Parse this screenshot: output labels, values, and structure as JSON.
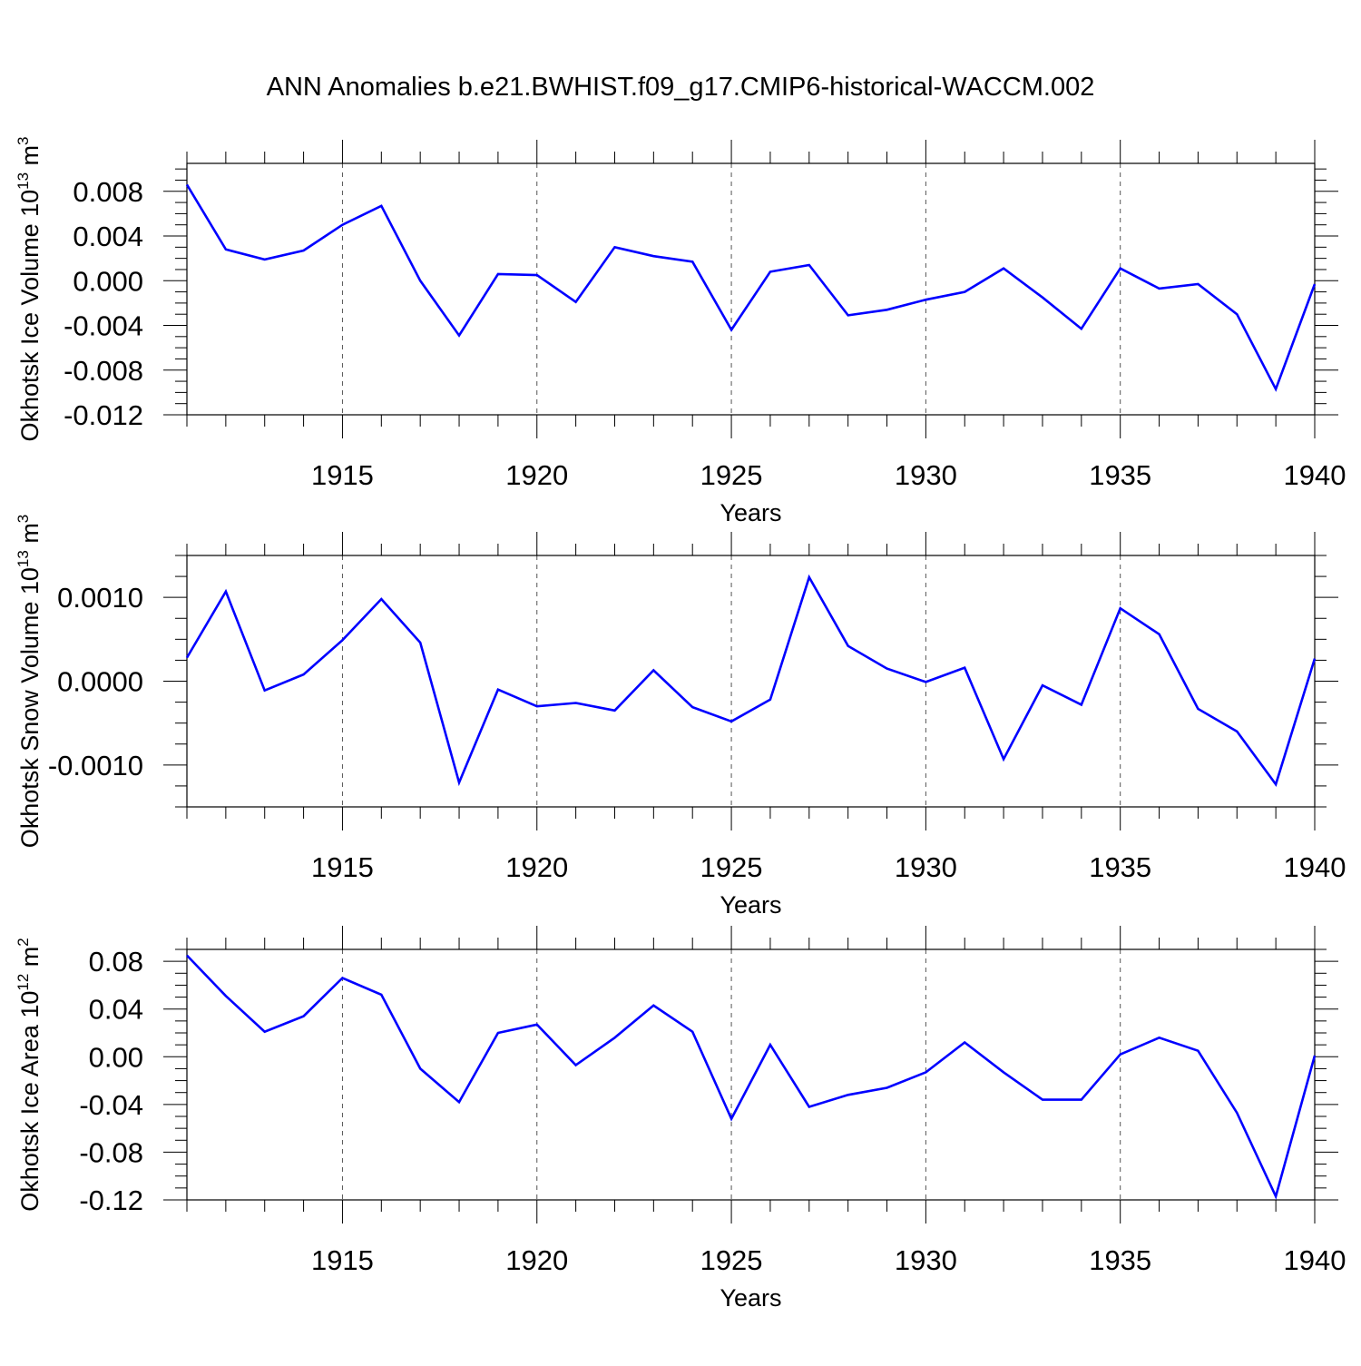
{
  "figure": {
    "title": "ANN Anomalies b.e21.BWHIST.f09_g17.CMIP6-historical-WACCM.002",
    "line_color": "#0000ff"
  },
  "chart_data": [
    {
      "type": "line",
      "ylabel_main": "Okhotsk Ice Volume 10",
      "ylabel_exp": "13",
      "ylabel_unit": " m",
      "ylabel_unit_exp": "3",
      "xlabel": "Years",
      "xlim": [
        1911,
        1940
      ],
      "ylim": [
        -0.012,
        0.0105
      ],
      "yticks": [
        0.008,
        0.004,
        0.0,
        -0.004,
        -0.008,
        -0.012
      ],
      "ytick_labels": [
        "0.008",
        "0.004",
        "0.000",
        "-0.004",
        "-0.008",
        "-0.012"
      ],
      "xticks": [
        1915,
        1920,
        1925,
        1930,
        1935,
        1940
      ],
      "xtick_labels": [
        "1915",
        "1920",
        "1925",
        "1930",
        "1935",
        "1940"
      ],
      "x": [
        1911,
        1912,
        1913,
        1914,
        1915,
        1916,
        1917,
        1918,
        1919,
        1920,
        1921,
        1922,
        1923,
        1924,
        1925,
        1926,
        1927,
        1928,
        1929,
        1930,
        1931,
        1932,
        1933,
        1934,
        1935,
        1936,
        1937,
        1938,
        1939,
        1940
      ],
      "y": [
        0.0086,
        0.0028,
        0.0019,
        0.0027,
        0.005,
        0.0067,
        0.0,
        -0.0049,
        0.0006,
        0.0005,
        -0.0019,
        0.003,
        0.0022,
        0.0017,
        -0.0044,
        0.0008,
        0.0014,
        -0.0031,
        -0.0026,
        -0.0017,
        -0.001,
        0.0011,
        -0.0015,
        -0.0043,
        0.0011,
        -0.0007,
        -0.0003,
        -0.003,
        -0.0097,
        -0.0003
      ]
    },
    {
      "type": "line",
      "ylabel_main": "Okhotsk Snow Volume 10",
      "ylabel_exp": "13",
      "ylabel_unit": " m",
      "ylabel_unit_exp": "3",
      "xlabel": "Years",
      "xlim": [
        1911,
        1940
      ],
      "ylim": [
        -0.0015,
        0.0015
      ],
      "yticks": [
        0.001,
        0.0,
        -0.001
      ],
      "ytick_labels": [
        "0.0010",
        "0.0000",
        "-0.0010"
      ],
      "xticks": [
        1915,
        1920,
        1925,
        1930,
        1935,
        1940
      ],
      "xtick_labels": [
        "1915",
        "1920",
        "1925",
        "1930",
        "1935",
        "1940"
      ],
      "x": [
        1911,
        1912,
        1913,
        1914,
        1915,
        1916,
        1917,
        1918,
        1919,
        1920,
        1921,
        1922,
        1923,
        1924,
        1925,
        1926,
        1927,
        1928,
        1929,
        1930,
        1931,
        1932,
        1933,
        1934,
        1935,
        1936,
        1937,
        1938,
        1939,
        1940
      ],
      "y": [
        0.00028,
        0.00107,
        -0.00011,
        8e-05,
        0.00049,
        0.00098,
        0.00046,
        -0.00121,
        -0.0001,
        -0.0003,
        -0.00026,
        -0.00035,
        0.00013,
        -0.00031,
        -0.00048,
        -0.00022,
        0.00124,
        0.00042,
        0.00015,
        -1e-05,
        0.00016,
        -0.00093,
        -5e-05,
        -0.00028,
        0.00087,
        0.00056,
        -0.00033,
        -0.0006,
        -0.00123,
        0.00027
      ]
    },
    {
      "type": "line",
      "ylabel_main": "Okhotsk Ice Area 10",
      "ylabel_exp": "12",
      "ylabel_unit": " m",
      "ylabel_unit_exp": "2",
      "xlabel": "Years",
      "xlim": [
        1911,
        1940
      ],
      "ylim": [
        -0.12,
        0.09
      ],
      "yticks": [
        0.08,
        0.04,
        0.0,
        -0.04,
        -0.08,
        -0.12
      ],
      "ytick_labels": [
        "0.08",
        "0.04",
        "0.00",
        "-0.04",
        "-0.08",
        "-0.12"
      ],
      "xticks": [
        1915,
        1920,
        1925,
        1930,
        1935,
        1940
      ],
      "xtick_labels": [
        "1915",
        "1920",
        "1925",
        "1930",
        "1935",
        "1940"
      ],
      "x": [
        1911,
        1912,
        1913,
        1914,
        1915,
        1916,
        1917,
        1918,
        1919,
        1920,
        1921,
        1922,
        1923,
        1924,
        1925,
        1926,
        1927,
        1928,
        1929,
        1930,
        1931,
        1932,
        1933,
        1934,
        1935,
        1936,
        1937,
        1938,
        1939,
        1940
      ],
      "y": [
        0.085,
        0.051,
        0.021,
        0.034,
        0.066,
        0.052,
        -0.01,
        -0.038,
        0.02,
        0.027,
        -0.007,
        0.016,
        0.043,
        0.021,
        -0.052,
        0.01,
        -0.042,
        -0.032,
        -0.026,
        -0.013,
        0.012,
        -0.013,
        -0.036,
        -0.036,
        0.002,
        0.016,
        0.005,
        -0.047,
        -0.117,
        0.001
      ]
    }
  ]
}
